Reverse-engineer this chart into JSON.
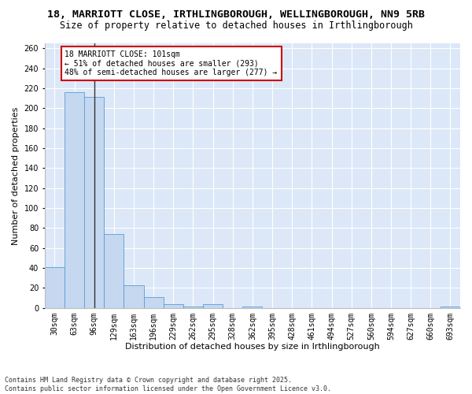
{
  "title_line1": "18, MARRIOTT CLOSE, IRTHLINGBOROUGH, WELLINGBOROUGH, NN9 5RB",
  "title_line2": "Size of property relative to detached houses in Irthlingborough",
  "xlabel": "Distribution of detached houses by size in Irthlingborough",
  "ylabel": "Number of detached properties",
  "categories": [
    "30sqm",
    "63sqm",
    "96sqm",
    "129sqm",
    "163sqm",
    "196sqm",
    "229sqm",
    "262sqm",
    "295sqm",
    "328sqm",
    "362sqm",
    "395sqm",
    "428sqm",
    "461sqm",
    "494sqm",
    "527sqm",
    "560sqm",
    "594sqm",
    "627sqm",
    "660sqm",
    "693sqm"
  ],
  "values": [
    41,
    216,
    211,
    74,
    23,
    11,
    4,
    1,
    4,
    0,
    1,
    0,
    0,
    0,
    0,
    0,
    0,
    0,
    0,
    0,
    1
  ],
  "bar_color": "#c5d8f0",
  "bar_edge_color": "#5b9bd5",
  "vline_x_idx": 2,
  "vline_color": "#333333",
  "annotation_text_line1": "18 MARRIOTT CLOSE: 101sqm",
  "annotation_text_line2": "← 51% of detached houses are smaller (293)",
  "annotation_text_line3": "48% of semi-detached houses are larger (277) →",
  "annotation_box_edge_color": "#cc0000",
  "ylim": [
    0,
    265
  ],
  "yticks": [
    0,
    20,
    40,
    60,
    80,
    100,
    120,
    140,
    160,
    180,
    200,
    220,
    240,
    260
  ],
  "plot_bg_color": "#dce8f8",
  "fig_bg_color": "#ffffff",
  "footer_line1": "Contains HM Land Registry data © Crown copyright and database right 2025.",
  "footer_line2": "Contains public sector information licensed under the Open Government Licence v3.0.",
  "title_fontsize": 9.5,
  "subtitle_fontsize": 8.5,
  "axis_label_fontsize": 8,
  "tick_fontsize": 7,
  "annotation_fontsize": 7,
  "footer_fontsize": 6
}
